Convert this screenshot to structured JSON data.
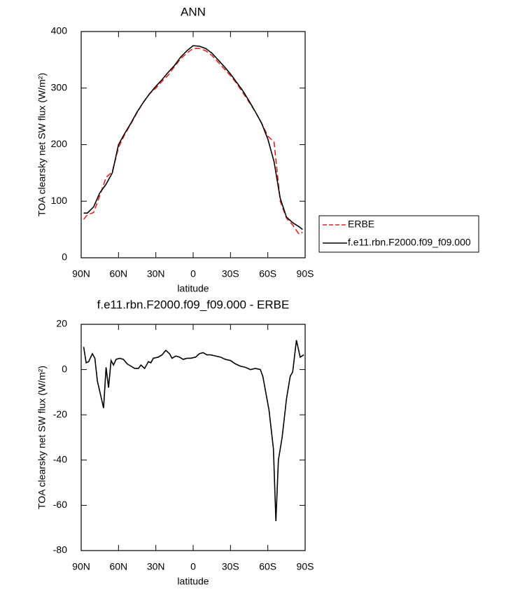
{
  "chart_data": [
    {
      "type": "line",
      "title": "ANN",
      "xlabel": "latitude",
      "ylabel": "TOA clearsky net SW flux (W/m²)",
      "xlim": [
        90,
        -90
      ],
      "xticks": [
        {
          "value": 90,
          "label": "90N"
        },
        {
          "value": 60,
          "label": "60N"
        },
        {
          "value": 30,
          "label": "30N"
        },
        {
          "value": 0,
          "label": "0"
        },
        {
          "value": -30,
          "label": "30S"
        },
        {
          "value": -60,
          "label": "60S"
        },
        {
          "value": -90,
          "label": "90S"
        }
      ],
      "ylim": [
        0,
        400
      ],
      "yticks": [
        0,
        100,
        200,
        300,
        400
      ],
      "legend": "right",
      "x": [
        88,
        85,
        80,
        75,
        70,
        65,
        60,
        55,
        50,
        45,
        40,
        35,
        30,
        25,
        20,
        15,
        10,
        5,
        0,
        -5,
        -10,
        -15,
        -20,
        -25,
        -30,
        -35,
        -40,
        -45,
        -50,
        -55,
        -60,
        -65,
        -70,
        -75,
        -80,
        -85,
        -88
      ],
      "series": [
        {
          "name": "ERBE",
          "color": "#e8231f",
          "style": "dashed",
          "values": [
            68,
            76,
            80,
            110,
            142,
            152,
            195,
            218,
            237,
            257,
            275,
            290,
            300,
            312,
            323,
            338,
            352,
            362,
            370,
            370,
            366,
            358,
            346,
            334,
            322,
            308,
            292,
            275,
            258,
            238,
            215,
            205,
            100,
            70,
            58,
            42,
            45
          ]
        },
        {
          "name": "f.e11.rbn.F2000.f09_f09.000",
          "color": "#000000",
          "style": "solid",
          "values": [
            79,
            79,
            90,
            115,
            130,
            150,
            200,
            220,
            238,
            258,
            275,
            290,
            303,
            315,
            328,
            340,
            355,
            366,
            375,
            374,
            370,
            362,
            350,
            338,
            325,
            310,
            295,
            277,
            258,
            238,
            210,
            170,
            105,
            72,
            62,
            55,
            50
          ]
        }
      ]
    },
    {
      "type": "line",
      "title": "f.e11.rbn.F2000.f09_f09.000 - ERBE",
      "xlabel": "latitude",
      "ylabel": "TOA clearsky net SW flux (W/m²)",
      "xlim": [
        90,
        -90
      ],
      "xticks": [
        {
          "value": 90,
          "label": "90N"
        },
        {
          "value": 60,
          "label": "60N"
        },
        {
          "value": 30,
          "label": "30N"
        },
        {
          "value": 0,
          "label": "0"
        },
        {
          "value": -30,
          "label": "30S"
        },
        {
          "value": -60,
          "label": "60S"
        },
        {
          "value": -90,
          "label": "90S"
        }
      ],
      "ylim": [
        -80,
        20
      ],
      "yticks": [
        -80,
        -60,
        -40,
        -20,
        0,
        20
      ],
      "x": [
        88,
        86,
        84,
        81,
        79,
        77,
        72,
        70,
        68,
        66,
        64,
        62,
        59,
        56,
        53,
        50,
        47,
        44,
        42,
        39,
        36,
        34,
        32,
        28,
        25,
        22,
        19,
        17,
        14,
        11,
        8,
        5,
        2,
        -2,
        -5,
        -8,
        -11,
        -14,
        -18,
        -22,
        -26,
        -30,
        -34,
        -38,
        -42,
        -46,
        -50,
        -54,
        -56,
        -61,
        -64.5,
        -66.5,
        -68.5,
        -71.5,
        -75,
        -78,
        -80,
        -83,
        -86,
        -89
      ],
      "series": [
        {
          "name": "f.e11.rbn.F2000.f09_f09.000 - ERBE",
          "color": "#000000",
          "style": "solid",
          "values": [
            10,
            3,
            3.5,
            7,
            5,
            -5,
            -17,
            1,
            -8,
            4,
            2,
            4.5,
            5,
            4.5,
            2.5,
            1.5,
            0.5,
            0.5,
            2,
            0.5,
            3.5,
            3,
            5,
            5.5,
            6.5,
            8.5,
            7,
            5,
            6,
            5.5,
            4.5,
            5,
            5,
            5.5,
            7,
            7.5,
            6.5,
            6.5,
            6,
            5.5,
            4.5,
            4,
            2.5,
            1.5,
            1,
            0,
            0.5,
            0,
            -3,
            -18,
            -35,
            -67,
            -40,
            -30,
            -13,
            -3,
            -1,
            13,
            5.5,
            6.5
          ]
        }
      ]
    }
  ]
}
